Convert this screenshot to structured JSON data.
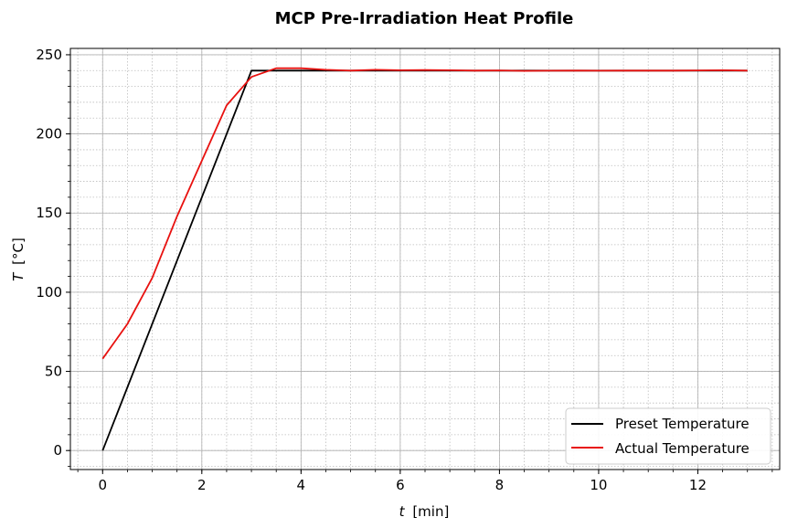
{
  "chart_data": {
    "type": "line",
    "title": "MCP Pre-Irradiation Heat Profile",
    "xlabel_var": "t",
    "xlabel_unit": "[min]",
    "ylabel_var": "T",
    "ylabel_unit": "[°C]",
    "xlim": [
      -0.65,
      13.65
    ],
    "ylim": [
      -12,
      254
    ],
    "x_ticks": [
      0,
      2,
      4,
      6,
      8,
      10,
      12
    ],
    "y_ticks": [
      0,
      50,
      100,
      150,
      200,
      250
    ],
    "x_minor_step": 0.5,
    "y_minor_step": 10,
    "grid": "major solid + minor dotted",
    "legend_position": "lower-right",
    "series": [
      {
        "name": "Preset Temperature",
        "color": "#000000",
        "x": [
          0,
          3,
          13
        ],
        "y": [
          0,
          240,
          240
        ]
      },
      {
        "name": "Actual Temperature",
        "color": "#e8110f",
        "x": [
          0,
          0.5,
          1,
          1.5,
          2,
          2.5,
          3,
          3.5,
          4,
          4.5,
          5,
          5.5,
          6,
          6.5,
          7,
          7.5,
          8,
          8.5,
          9,
          9.5,
          10,
          10.5,
          11,
          11.5,
          12,
          12.5,
          13
        ],
        "y": [
          58,
          80,
          109,
          148,
          183,
          218,
          236,
          241.5,
          241.5,
          240.5,
          240,
          240.5,
          240.2,
          240.3,
          240.2,
          240,
          240.1,
          239.8,
          239.9,
          240,
          239.9,
          240,
          240,
          240,
          240.1,
          240.2,
          240
        ]
      }
    ]
  }
}
